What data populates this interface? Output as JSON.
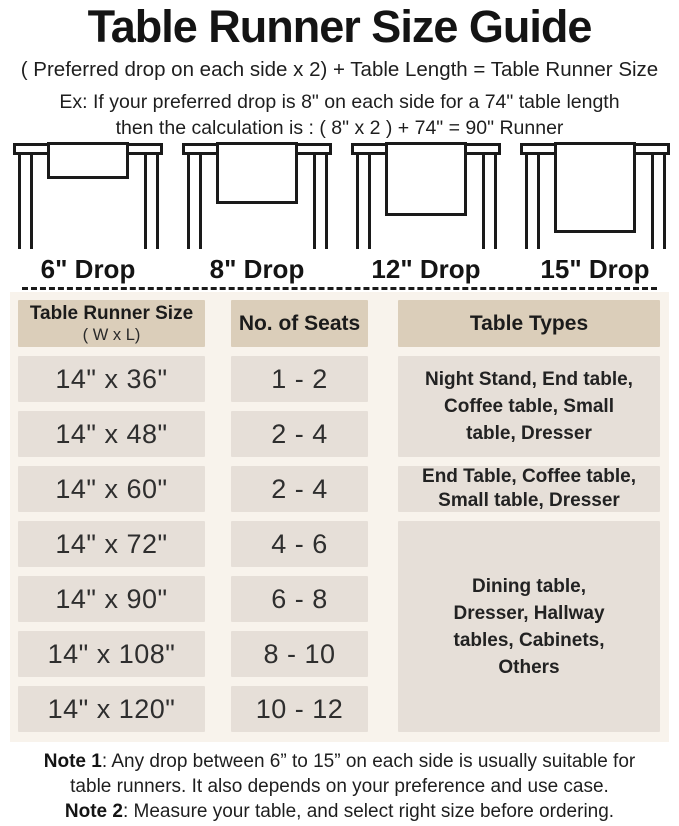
{
  "header": {
    "title": "Table Runner Size Guide",
    "formula": "( Preferred drop on each side x 2) + Table Length = Table Runner Size",
    "example_line1": "Ex: If your preferred drop is 8\" on each side for a 74\" table length",
    "example_line2": "then the calculation is : ( 8\" x 2 ) + 74\" = 90\" Runner"
  },
  "drop_diagrams": [
    {
      "label": "6\" Drop"
    },
    {
      "label": "8\" Drop"
    },
    {
      "label": "12\" Drop"
    },
    {
      "label": "15\" Drop"
    }
  ],
  "size_table": {
    "header": {
      "col1_title": "Table Runner Size",
      "col1_subtitle": "( W x L)",
      "col2_title": "No. of Seats",
      "col3_title": "Table Types"
    },
    "rows": [
      {
        "size": "14\" x 36\"",
        "seats": "1 - 2"
      },
      {
        "size": "14\" x 48\"",
        "seats": "2 - 4"
      },
      {
        "size": "14\" x 60\"",
        "seats": "2 - 4"
      },
      {
        "size": "14\" x 72\"",
        "seats": "4 - 6"
      },
      {
        "size": "14\" x 90\"",
        "seats": "6 - 8"
      },
      {
        "size": "14\" x 108\"",
        "seats": "8 - 10"
      },
      {
        "size": "14\" x 120\"",
        "seats": "10 - 12"
      }
    ],
    "table_types": [
      {
        "applies_to_rows": "1-2",
        "text": "Night Stand, End table, Coffee table, Small table, Dresser",
        "lines": [
          "Night Stand, End table,",
          "Coffee table, Small",
          "table, Dresser"
        ]
      },
      {
        "applies_to_rows": "3",
        "text": "End Table, Coffee table, Small table, Dresser",
        "lines": [
          "End Table, Coffee table,",
          "Small table, Dresser"
        ]
      },
      {
        "applies_to_rows": "4-7",
        "text": "Dining table, Dresser, Hallway tables, Cabinets, Others",
        "lines": [
          "Dining table,",
          "Dresser, Hallway",
          "tables, Cabinets,",
          "Others"
        ]
      }
    ]
  },
  "notes": {
    "note1_label": "Note 1",
    "note1_line1": ": Any drop between 6” to 15” on each side is usually suitable for",
    "note1_line2": "table runners. It also depends on your preference and use case.",
    "note2_label": "Note 2",
    "note2_text": ": Measure your table, and select right size before ordering."
  },
  "colors": {
    "header_cell": "#dbceba",
    "body_cell": "#e6dfd8",
    "table_background": "#f8f3ec",
    "line_art": "#1a1a1a",
    "text": "#1c1c1c"
  }
}
